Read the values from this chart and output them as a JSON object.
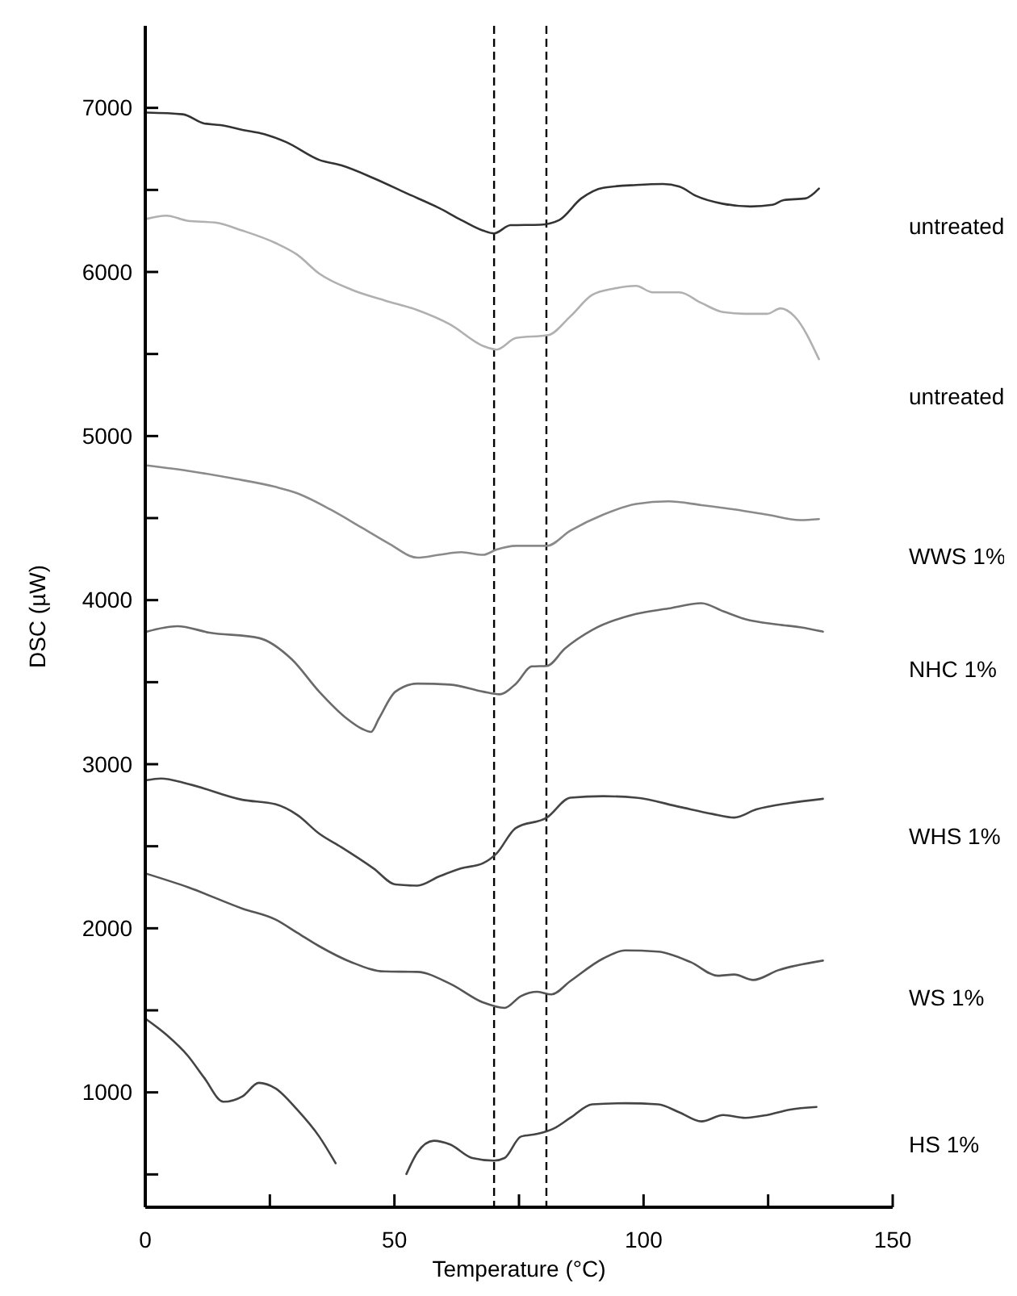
{
  "chart_data": {
    "type": "line",
    "xlabel": "Temperature (°C)",
    "ylabel": "DSC (µW)",
    "xlim": [
      0,
      150
    ],
    "xticks": [
      0,
      {
        "value": 25,
        "label": null
      },
      50,
      {
        "value": 75,
        "label": null
      },
      100,
      {
        "value": 125,
        "label": null
      },
      150
    ],
    "ylim": [
      300,
      7500
    ],
    "yticks": [
      {
        "value": 500,
        "label": null
      },
      1000,
      {
        "value": 1500,
        "label": null
      },
      2000,
      {
        "value": 2500,
        "label": null
      },
      3000,
      {
        "value": 3500,
        "label": null
      },
      4000,
      {
        "value": 4500,
        "label": null
      },
      5000,
      {
        "value": 5500,
        "label": null
      },
      6000,
      {
        "value": 6500,
        "label": null
      },
      7000
    ],
    "grid": false,
    "marker": "none",
    "line_style": "solid",
    "ref_lines": [
      {
        "axis": "x",
        "value": 70,
        "color": "#000000",
        "line_style": "dashed"
      },
      {
        "axis": "x",
        "value": 80.5,
        "color": "#000000",
        "line_style": "dashed"
      }
    ],
    "series": [
      {
        "name": "untreated",
        "color": "#333333",
        "x": [
          0.3,
          7.5,
          11.8,
          15.1,
          19.5,
          23.9,
          28.3,
          34.9,
          39.3,
          45.8,
          52.4,
          59,
          63.4,
          67.8,
          70,
          73.3,
          79.3,
          83.1,
          87.5,
          91.9,
          98.5,
          103.9,
          107.2,
          110.5,
          116,
          121.5,
          125.9,
          128.1,
          132.5,
          135.2
        ],
        "values": [
          6971,
          6961,
          6905,
          6895,
          6866,
          6840,
          6791,
          6683,
          6650,
          6572,
          6480,
          6389,
          6317,
          6252,
          6235,
          6285,
          6288,
          6317,
          6448,
          6513,
          6530,
          6536,
          6520,
          6464,
          6415,
          6399,
          6409,
          6438,
          6448,
          6508
        ]
      },
      {
        "name": "untreated",
        "color": "#b0b0b0",
        "x": [
          0.3,
          4.2,
          8.6,
          14,
          19.5,
          26.1,
          30.5,
          34.9,
          41.4,
          48,
          54.6,
          61.2,
          67.8,
          70.5,
          74.4,
          80.9,
          85.3,
          89.7,
          94.1,
          98.5,
          101.8,
          107.2,
          111.6,
          116,
          120.4,
          124.8,
          127.5,
          130.3,
          135.2
        ],
        "values": [
          6324,
          6343,
          6311,
          6301,
          6252,
          6177,
          6105,
          5990,
          5892,
          5827,
          5768,
          5680,
          5549,
          5527,
          5598,
          5615,
          5729,
          5860,
          5899,
          5915,
          5876,
          5876,
          5811,
          5755,
          5745,
          5745,
          5778,
          5729,
          5468
        ]
      },
      {
        "name": "WWS 1%",
        "color": "#8a8a8a",
        "x": [
          0.3,
          8.6,
          17.3,
          26.1,
          30.5,
          37.1,
          43.6,
          49.1,
          54.6,
          59,
          63.4,
          67.8,
          70.5,
          74.4,
          80.6,
          85.3,
          91.9,
          98.5,
          105,
          111.6,
          118.2,
          124.8,
          131.4,
          135.2
        ],
        "values": [
          4821,
          4788,
          4743,
          4690,
          4651,
          4553,
          4439,
          4341,
          4259,
          4276,
          4292,
          4276,
          4308,
          4331,
          4331,
          4423,
          4521,
          4586,
          4602,
          4579,
          4553,
          4521,
          4488,
          4494
        ]
      },
      {
        "name": "NHC 1%",
        "color": "#6a6a6a",
        "x": [
          0.3,
          6.4,
          12.9,
          22.8,
          29.4,
          34.9,
          40.4,
          43.6,
          45.3,
          46.9,
          50.2,
          54.6,
          61.2,
          67.8,
          71.1,
          74.4,
          77.6,
          80.6,
          84.2,
          89.7,
          98.5,
          105,
          111.6,
          116,
          120.4,
          127,
          131.4,
          136
        ],
        "values": [
          3808,
          3841,
          3802,
          3769,
          3639,
          3442,
          3279,
          3214,
          3197,
          3279,
          3442,
          3491,
          3485,
          3442,
          3426,
          3491,
          3596,
          3599,
          3704,
          3818,
          3916,
          3949,
          3981,
          3932,
          3884,
          3851,
          3835,
          3808
        ]
      },
      {
        "name": "WHS 1%",
        "color": "#444444",
        "x": [
          0.3,
          3.1,
          8.6,
          19.5,
          26.1,
          30.5,
          34.9,
          39.3,
          45.8,
          50.2,
          54.6,
          59,
          63.4,
          67.8,
          70.5,
          74.3,
          80.6,
          85.3,
          91.9,
          98.5,
          107.2,
          113.8,
          118.2,
          122.6,
          129.2,
          136
        ],
        "values": [
          2903,
          2913,
          2880,
          2783,
          2756,
          2691,
          2577,
          2495,
          2365,
          2267,
          2260,
          2316,
          2365,
          2397,
          2456,
          2610,
          2675,
          2796,
          2805,
          2796,
          2740,
          2697,
          2675,
          2724,
          2763,
          2789
        ]
      },
      {
        "name": "WS 1%",
        "color": "#555555",
        "x": [
          0.3,
          8.6,
          19.5,
          26.1,
          30.5,
          34.9,
          41.4,
          48,
          54.6,
          61.2,
          67.8,
          72.1,
          75.4,
          78.7,
          81.5,
          85.3,
          91.9,
          96.3,
          102.9,
          109.5,
          114.9,
          118.2,
          122,
          127,
          136
        ],
        "values": [
          2332,
          2250,
          2120,
          2054,
          1973,
          1891,
          1793,
          1737,
          1734,
          1662,
          1548,
          1515,
          1587,
          1613,
          1597,
          1678,
          1816,
          1865,
          1858,
          1793,
          1711,
          1718,
          1685,
          1744,
          1803
        ]
      },
      {
        "name": "HS 1%",
        "color": "#444444",
        "x": [
          0,
          4.2,
          8.6,
          11.8,
          15.7,
          19.5,
          22.8,
          26.1,
          30.5,
          34.9,
          38.2,
          41.4,
          46,
          51.3,
          52.4,
          54.6,
          57.9,
          61.2,
          65.6,
          70,
          72.1,
          75.4,
          78.7,
          82,
          85.3,
          89.7,
          96.3,
          102.9,
          107.2,
          111.6,
          116,
          120.4,
          124.8,
          129.2,
          134.7
        ],
        "values": [
          1450,
          1352,
          1221,
          1090,
          943,
          976,
          1058,
          1025,
          894,
          731,
          568,
          null,
          null,
          null,
          502,
          633,
          705,
          682,
          600,
          584,
          600,
          731,
          747,
          780,
          845,
          927,
          934,
          927,
          878,
          823,
          862,
          845,
          862,
          894,
          911
        ]
      }
    ]
  }
}
